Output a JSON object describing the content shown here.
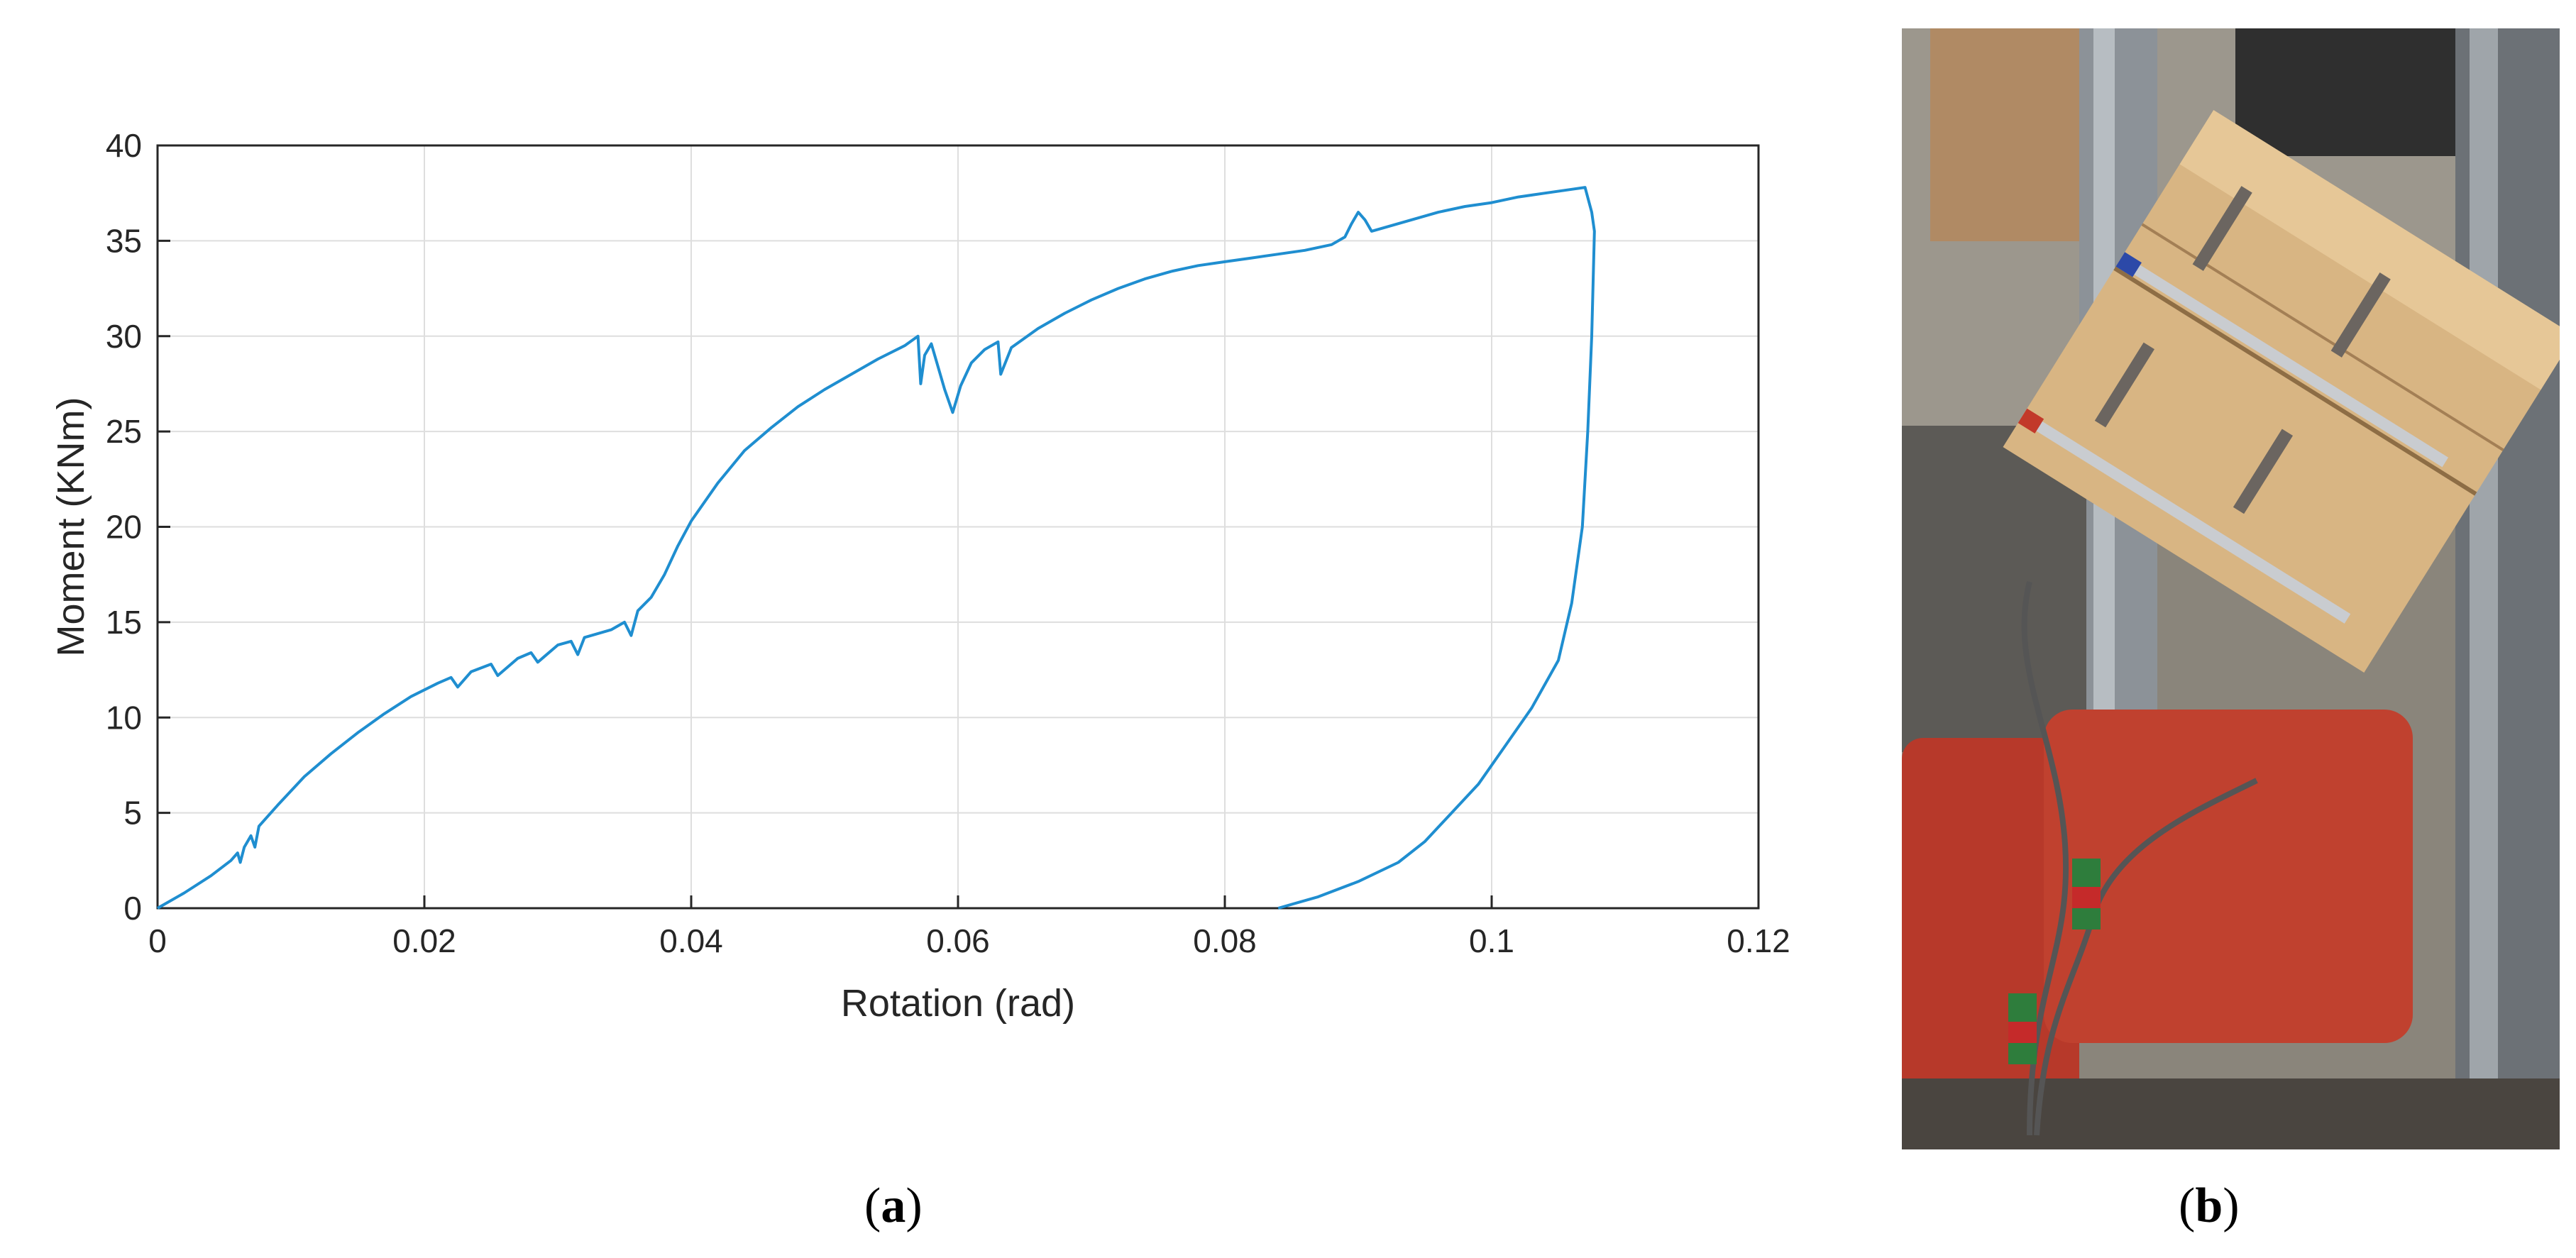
{
  "chart_data": {
    "type": "line",
    "xlabel": "Rotation (rad)",
    "ylabel": "Moment (KNm)",
    "xlim": [
      0,
      0.12
    ],
    "ylim": [
      0,
      40
    ],
    "xticks": [
      "0",
      "0.02",
      "0.04",
      "0.06",
      "0.08",
      "0.1",
      "0.12"
    ],
    "yticks": [
      "0",
      "5",
      "10",
      "15",
      "20",
      "25",
      "30",
      "35",
      "40"
    ],
    "grid": true,
    "series": [
      {
        "color": "#1f8ed0",
        "points": [
          [
            0.0,
            0.0
          ],
          [
            0.002,
            0.8
          ],
          [
            0.004,
            1.7
          ],
          [
            0.0055,
            2.5
          ],
          [
            0.006,
            2.9
          ],
          [
            0.0062,
            2.4
          ],
          [
            0.0065,
            3.2
          ],
          [
            0.007,
            3.8
          ],
          [
            0.0073,
            3.2
          ],
          [
            0.0076,
            4.3
          ],
          [
            0.009,
            5.4
          ],
          [
            0.011,
            6.9
          ],
          [
            0.013,
            8.1
          ],
          [
            0.015,
            9.2
          ],
          [
            0.017,
            10.2
          ],
          [
            0.019,
            11.1
          ],
          [
            0.021,
            11.8
          ],
          [
            0.022,
            12.1
          ],
          [
            0.0225,
            11.6
          ],
          [
            0.0235,
            12.4
          ],
          [
            0.025,
            12.8
          ],
          [
            0.0255,
            12.2
          ],
          [
            0.027,
            13.1
          ],
          [
            0.028,
            13.4
          ],
          [
            0.0285,
            12.9
          ],
          [
            0.03,
            13.8
          ],
          [
            0.031,
            14.0
          ],
          [
            0.0315,
            13.3
          ],
          [
            0.032,
            14.2
          ],
          [
            0.034,
            14.6
          ],
          [
            0.035,
            15.0
          ],
          [
            0.0355,
            14.3
          ],
          [
            0.036,
            15.6
          ],
          [
            0.037,
            16.3
          ],
          [
            0.038,
            17.5
          ],
          [
            0.039,
            19.0
          ],
          [
            0.04,
            20.3
          ],
          [
            0.042,
            22.3
          ],
          [
            0.044,
            24.0
          ],
          [
            0.046,
            25.2
          ],
          [
            0.048,
            26.3
          ],
          [
            0.05,
            27.2
          ],
          [
            0.052,
            28.0
          ],
          [
            0.054,
            28.8
          ],
          [
            0.056,
            29.5
          ],
          [
            0.057,
            30.0
          ],
          [
            0.0572,
            27.5
          ],
          [
            0.0575,
            29.0
          ],
          [
            0.058,
            29.6
          ],
          [
            0.059,
            27.2
          ],
          [
            0.0596,
            26.0
          ],
          [
            0.0602,
            27.4
          ],
          [
            0.061,
            28.6
          ],
          [
            0.062,
            29.3
          ],
          [
            0.063,
            29.7
          ],
          [
            0.0632,
            28.0
          ],
          [
            0.064,
            29.4
          ],
          [
            0.066,
            30.4
          ],
          [
            0.068,
            31.2
          ],
          [
            0.07,
            31.9
          ],
          [
            0.072,
            32.5
          ],
          [
            0.074,
            33.0
          ],
          [
            0.076,
            33.4
          ],
          [
            0.078,
            33.7
          ],
          [
            0.08,
            33.9
          ],
          [
            0.082,
            34.1
          ],
          [
            0.084,
            34.3
          ],
          [
            0.086,
            34.5
          ],
          [
            0.088,
            34.8
          ],
          [
            0.089,
            35.2
          ],
          [
            0.0895,
            35.9
          ],
          [
            0.09,
            36.5
          ],
          [
            0.0905,
            36.1
          ],
          [
            0.091,
            35.5
          ],
          [
            0.092,
            35.7
          ],
          [
            0.094,
            36.1
          ],
          [
            0.096,
            36.5
          ],
          [
            0.098,
            36.8
          ],
          [
            0.1,
            37.0
          ],
          [
            0.102,
            37.3
          ],
          [
            0.104,
            37.5
          ],
          [
            0.106,
            37.7
          ],
          [
            0.107,
            37.8
          ],
          [
            0.1075,
            36.5
          ],
          [
            0.1077,
            35.5
          ],
          [
            0.1075,
            30.0
          ],
          [
            0.1072,
            25.0
          ],
          [
            0.1068,
            20.0
          ],
          [
            0.106,
            16.0
          ],
          [
            0.105,
            13.0
          ],
          [
            0.103,
            10.5
          ],
          [
            0.101,
            8.5
          ],
          [
            0.099,
            6.5
          ],
          [
            0.097,
            5.0
          ],
          [
            0.095,
            3.5
          ],
          [
            0.093,
            2.4
          ],
          [
            0.09,
            1.4
          ],
          [
            0.087,
            0.6
          ],
          [
            0.084,
            0.0
          ]
        ]
      }
    ]
  },
  "captions": {
    "a": "a",
    "b": "b"
  }
}
